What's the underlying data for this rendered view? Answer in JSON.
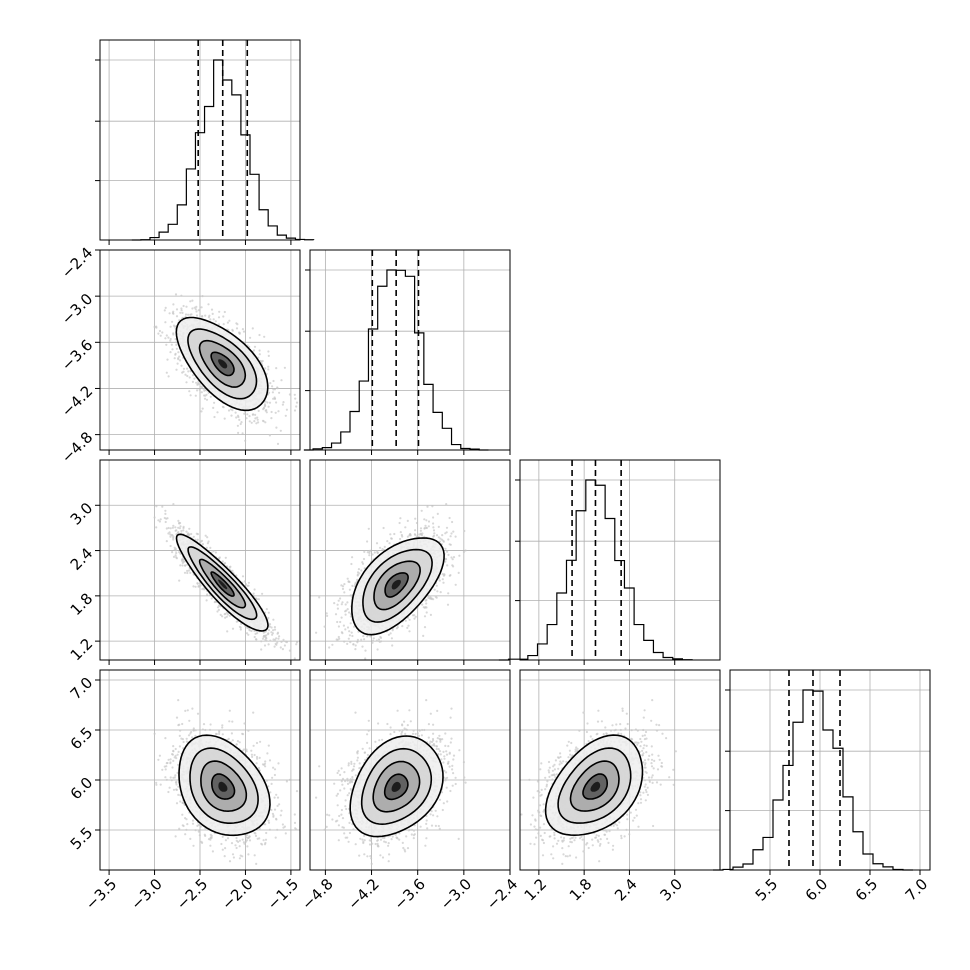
{
  "figure": {
    "kind": "corner-plot"
  },
  "chart_data": {
    "type": "corner",
    "n_params": 4,
    "parameters": [
      {
        "range": [
          -3.6,
          -1.4
        ],
        "ticks": [
          -3.5,
          -3.0,
          -2.5,
          -2.0,
          -1.5
        ],
        "tick_labels": [
          "−3.5",
          "−3.0",
          "−2.5",
          "−2.0",
          "−1.5"
        ],
        "mean": -2.25,
        "sd": 0.25,
        "quantiles": [
          -2.52,
          -2.25,
          -1.98
        ]
      },
      {
        "range": [
          -5.0,
          -2.4
        ],
        "ticks": [
          -4.8,
          -4.2,
          -3.6,
          -3.0,
          -2.4
        ],
        "tick_labels": [
          "−4.8",
          "−4.2",
          "−3.6",
          "−3.0",
          "−2.4"
        ],
        "mean": -3.88,
        "sd": 0.3,
        "quantiles": [
          -4.19,
          -3.88,
          -3.59
        ]
      },
      {
        "range": [
          0.95,
          3.6
        ],
        "ticks": [
          1.2,
          1.8,
          2.4,
          3.0
        ],
        "tick_labels": [
          "1.2",
          "1.8",
          "2.4",
          "3.0"
        ],
        "mean": 1.95,
        "sd": 0.32,
        "quantiles": [
          1.64,
          1.95,
          2.29
        ]
      },
      {
        "range": [
          5.1,
          7.1
        ],
        "ticks": [
          5.5,
          6.0,
          6.5,
          7.0
        ],
        "tick_labels": [
          "5.5",
          "6.0",
          "6.5",
          "7.0"
        ],
        "mean": 5.93,
        "sd": 0.25,
        "quantiles": [
          5.69,
          5.93,
          6.2
        ]
      }
    ],
    "correlations": [
      [
        1.0,
        -0.6,
        -0.9,
        -0.3
      ],
      [
        -0.6,
        1.0,
        0.55,
        0.3
      ],
      [
        -0.9,
        0.55,
        1.0,
        0.4
      ],
      [
        -0.3,
        0.3,
        0.4,
        1.0
      ]
    ],
    "histogram_bins": 20,
    "contour_levels": 4,
    "quantile_lines": "dashed",
    "grid": true,
    "colors": {
      "line": "#000000",
      "points": "#c8c8c8",
      "grid": "#b0b0b0",
      "frame": "#000000"
    }
  }
}
